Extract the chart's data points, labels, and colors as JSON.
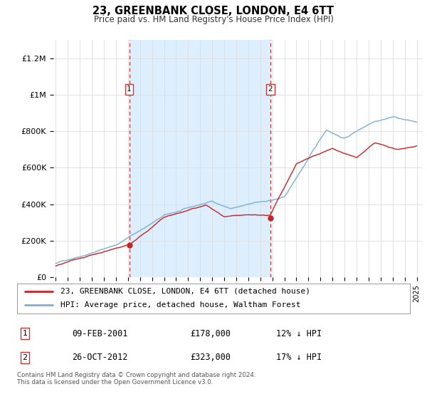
{
  "title": "23, GREENBANK CLOSE, LONDON, E4 6TT",
  "subtitle": "Price paid vs. HM Land Registry's House Price Index (HPI)",
  "ylim": [
    0,
    1300000
  ],
  "yticks": [
    0,
    200000,
    400000,
    600000,
    800000,
    1000000,
    1200000
  ],
  "ytick_labels": [
    "£0",
    "£200K",
    "£400K",
    "£600K",
    "£800K",
    "£1M",
    "£1.2M"
  ],
  "bg_color": "#ffffff",
  "plot_bg_color": "#ffffff",
  "hpi_color": "#7ab0d4",
  "price_color": "#cc2222",
  "grid_color": "#dddddd",
  "vline_color": "#cc3333",
  "highlight_bg": "#ddeeff",
  "sale1_year": 2001.1,
  "sale1_price": 178000,
  "sale1_label": "1",
  "sale1_date": "09-FEB-2001",
  "sale1_price_str": "£178,000",
  "sale1_hpi": "12% ↓ HPI",
  "sale2_year": 2012.83,
  "sale2_price": 323000,
  "sale2_label": "2",
  "sale2_date": "26-OCT-2012",
  "sale2_price_str": "£323,000",
  "sale2_hpi": "17% ↓ HPI",
  "legend_line1": "23, GREENBANK CLOSE, LONDON, E4 6TT (detached house)",
  "legend_line2": "HPI: Average price, detached house, Waltham Forest",
  "footer": "Contains HM Land Registry data © Crown copyright and database right 2024.\nThis data is licensed under the Open Government Licence v3.0."
}
